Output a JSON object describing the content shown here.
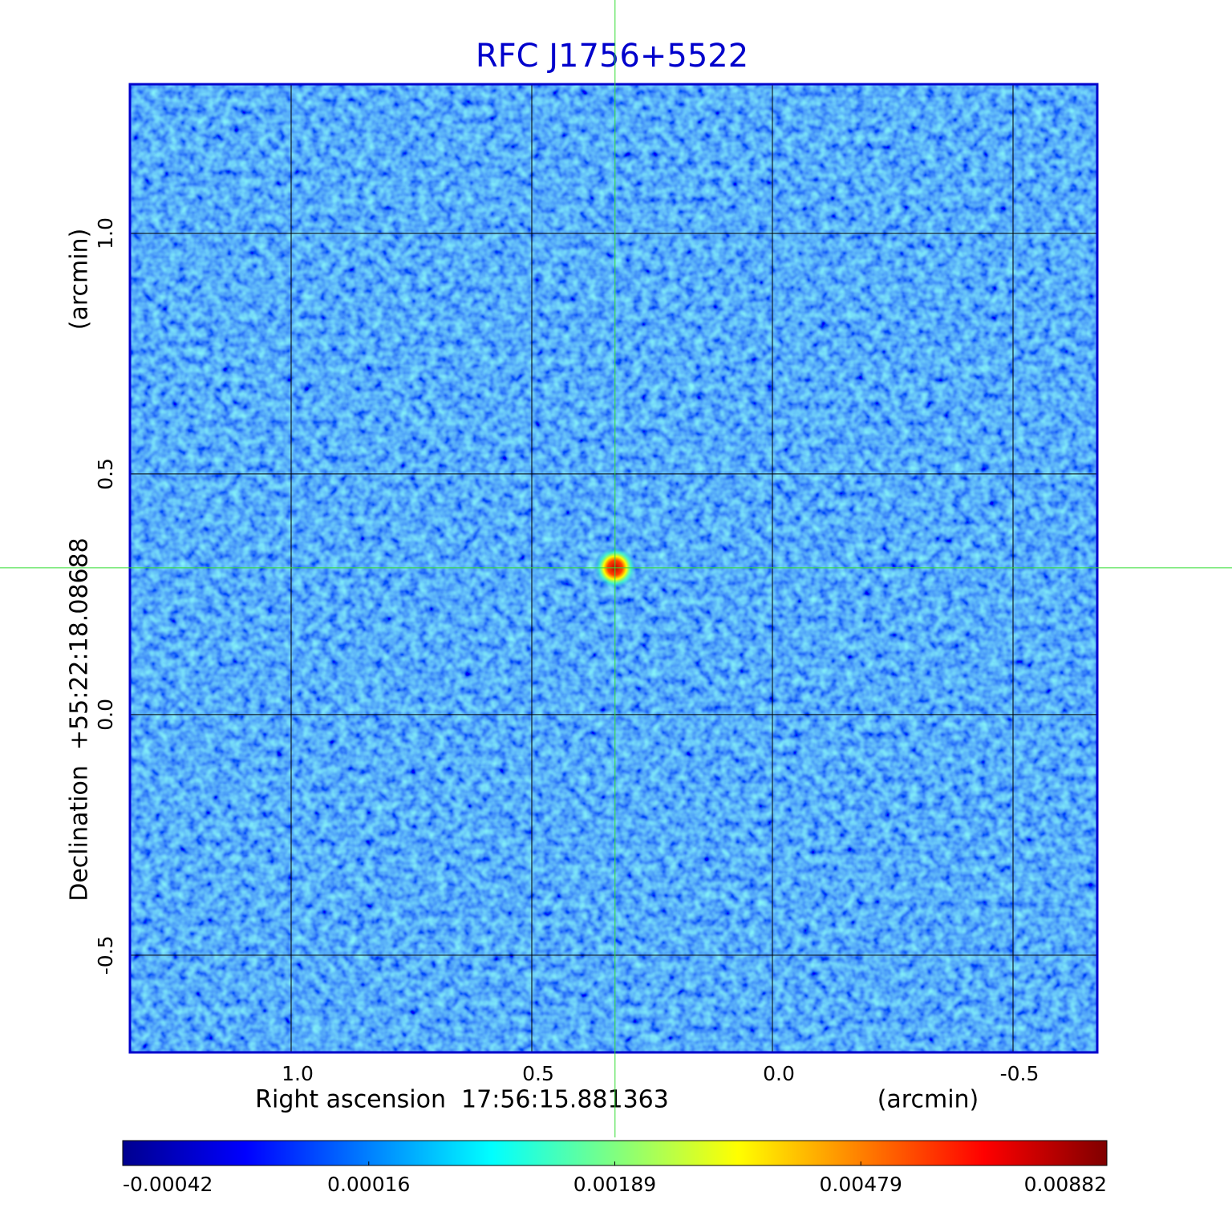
{
  "chart_data": {
    "type": "image",
    "title": "RFC J1756+5522",
    "x_label": "Right ascension  17:56:15.881363",
    "x_unit": "(arcmin)",
    "y_label": "Declination  +55:22:18.08688",
    "y_unit": "(arcmin)",
    "xlim": [
      1.335,
      -0.675
    ],
    "ylim": [
      -0.702,
      1.31
    ],
    "xticks": [
      {
        "value": 1,
        "label": "1.0"
      },
      0.5,
      {
        "value": 0,
        "label": "0.0"
      },
      -0.5
    ],
    "yticks": [
      {
        "value": 1,
        "label": "1.0"
      },
      0.5,
      {
        "value": 0,
        "label": "0.0"
      },
      -0.5
    ],
    "grid": true,
    "colormap": "jet",
    "colorbar_ticks": [
      -0.00042,
      0.00016,
      0.00189,
      0.00479,
      0.00882
    ],
    "crosshair": {
      "x": 0.327,
      "y": 0.305
    }
  }
}
